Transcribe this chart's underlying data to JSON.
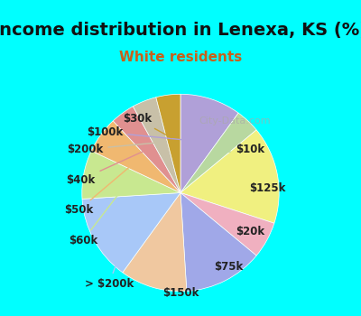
{
  "title": "Income distribution in Lenexa, KS (%)",
  "subtitle": "White residents",
  "watermark": "City-Data.com",
  "background_top": "#00FFFF",
  "background_chart": "#e8f5f0",
  "labels": [
    "$100k",
    "$10k",
    "$125k",
    "$20k",
    "$75k",
    "$150k",
    "> $200k",
    "$60k",
    "$50k",
    "$40k",
    "$200k",
    "$30k"
  ],
  "values": [
    10,
    4,
    16,
    6,
    13,
    11,
    14,
    8,
    6,
    4,
    4,
    4
  ],
  "colors": [
    "#b0a0d8",
    "#b8d8a0",
    "#f0f080",
    "#f0b0c0",
    "#a0a8e8",
    "#f0c8a0",
    "#a8c8f8",
    "#c8e890",
    "#f0b870",
    "#e09090",
    "#c8c0a8",
    "#c8a030"
  ],
  "label_fontsize": 8.5,
  "title_fontsize": 14,
  "subtitle_fontsize": 11,
  "title_color": "#111111",
  "subtitle_color": "#c8601a",
  "figsize": [
    4.0,
    3.5
  ],
  "dpi": 100
}
